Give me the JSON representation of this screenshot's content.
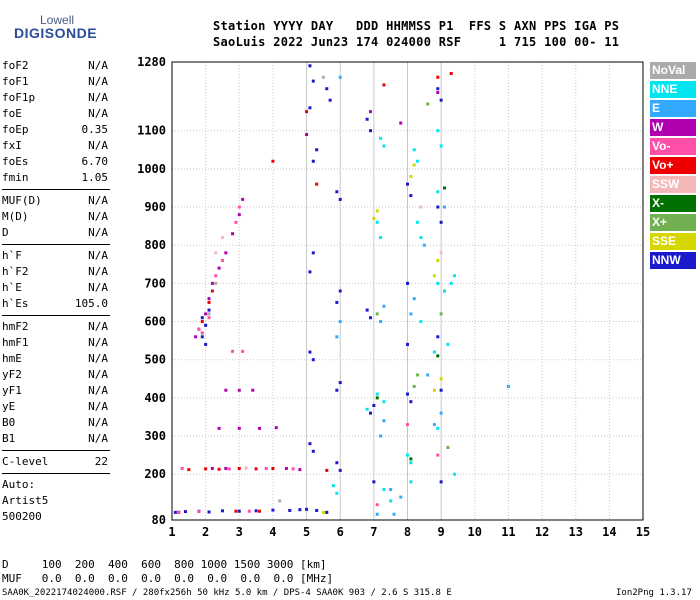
{
  "logo": {
    "top": "Lowell",
    "bottom": "DIGISONDE"
  },
  "header": {
    "line1": "Station YYYY DAY   DDD HHMMSS P1  FFS S AXN PPS IGA PS",
    "line2": "SaoLuis 2022 Jun23 174 024000 RSF     1 715 100 00- 11"
  },
  "sidebar": {
    "group1": [
      {
        "label": "foF2",
        "value": "N/A"
      },
      {
        "label": "foF1",
        "value": "N/A"
      },
      {
        "label": "foF1p",
        "value": "N/A"
      },
      {
        "label": "foE",
        "value": "N/A"
      },
      {
        "label": "foEp",
        "value": "0.35"
      },
      {
        "label": "fxI",
        "value": "N/A"
      },
      {
        "label": "foEs",
        "value": "6.70"
      },
      {
        "label": "fmin",
        "value": "1.05"
      }
    ],
    "group2": [
      {
        "label": "MUF(D)",
        "value": "N/A"
      },
      {
        "label": "M(D)",
        "value": "N/A"
      },
      {
        "label": "D",
        "value": "N/A"
      }
    ],
    "group3": [
      {
        "label": "h`F",
        "value": "N/A"
      },
      {
        "label": "h`F2",
        "value": "N/A"
      },
      {
        "label": "h`E",
        "value": "N/A"
      },
      {
        "label": "h`Es",
        "value": "105.0"
      }
    ],
    "group4": [
      {
        "label": "hmF2",
        "value": "N/A"
      },
      {
        "label": "hmF1",
        "value": "N/A"
      },
      {
        "label": "hmE",
        "value": "N/A"
      },
      {
        "label": "yF2",
        "value": "N/A"
      },
      {
        "label": "yF1",
        "value": "N/A"
      },
      {
        "label": "yE",
        "value": "N/A"
      },
      {
        "label": "B0",
        "value": "N/A"
      },
      {
        "label": "B1",
        "value": "N/A"
      }
    ],
    "clevel": {
      "label": "C-level",
      "value": "22"
    },
    "auto_lines": [
      "Auto:",
      "Artist5",
      "500200"
    ]
  },
  "legend": [
    {
      "label": "NoVal",
      "color": "#aaaaaa"
    },
    {
      "label": "NNE",
      "color": "#00e5ee"
    },
    {
      "label": "E",
      "color": "#33aaff"
    },
    {
      "label": "W",
      "color": "#b000b0"
    },
    {
      "label": "Vo-",
      "color": "#ff4fa8"
    },
    {
      "label": "Vo+",
      "color": "#ee0000"
    },
    {
      "label": "SSW",
      "color": "#f4b8b8"
    },
    {
      "label": "X-",
      "color": "#007000"
    },
    {
      "label": "X+",
      "color": "#70b050"
    },
    {
      "label": "SSE",
      "color": "#d6d600"
    },
    {
      "label": "NNW",
      "color": "#1a1acc"
    }
  ],
  "bottom": {
    "d_line": "D     100  200  400  600  800 1000 1500 3000 [km]",
    "muf_line": "MUF   0.0  0.0  0.0  0.0  0.0  0.0  0.0  0.0 [MHz]",
    "footer": "SAA0K_2022174024000.RSF / 280fx256h 50 kHz 5.0 km / DPS-4 SAA0K 903 / 2.6 S 315.8 E",
    "version": "Ion2Png 1.3.17"
  },
  "chart_data": {
    "type": "scatter",
    "title": "",
    "xlabel": "",
    "ylabel": "",
    "xlim": [
      1,
      15
    ],
    "ylim": [
      80,
      1280
    ],
    "xticks": [
      1,
      2,
      3,
      4,
      5,
      6,
      7,
      8,
      9,
      10,
      11,
      12,
      13,
      14,
      15
    ],
    "yticks": [
      80,
      200,
      300,
      400,
      500,
      600,
      700,
      800,
      900,
      1000,
      1100,
      1280
    ],
    "grid": true,
    "series": [
      {
        "name": "NNW",
        "color": "#1a1acc",
        "points": [
          [
            1.1,
            100
          ],
          [
            1.4,
            102
          ],
          [
            1.8,
            103
          ],
          [
            2.1,
            101
          ],
          [
            2.5,
            104
          ],
          [
            3.0,
            103
          ],
          [
            3.5,
            104
          ],
          [
            4.0,
            106
          ],
          [
            4.5,
            105
          ],
          [
            4.8,
            107
          ],
          [
            5.0,
            108
          ],
          [
            5.3,
            105
          ],
          [
            5.6,
            100
          ],
          [
            1.9,
            610
          ],
          [
            2.0,
            590
          ],
          [
            2.1,
            630
          ],
          [
            1.9,
            560
          ],
          [
            2.0,
            540
          ],
          [
            5.1,
            1270
          ],
          [
            5.2,
            1230
          ],
          [
            5.1,
            1160
          ],
          [
            5.2,
            1020
          ],
          [
            5.3,
            1050
          ],
          [
            5.9,
            940
          ],
          [
            6.0,
            920
          ],
          [
            5.9,
            650
          ],
          [
            6.0,
            680
          ],
          [
            5.2,
            780
          ],
          [
            5.1,
            730
          ],
          [
            5.2,
            500
          ],
          [
            5.1,
            520
          ],
          [
            5.9,
            420
          ],
          [
            6.0,
            440
          ],
          [
            5.2,
            260
          ],
          [
            5.1,
            280
          ],
          [
            5.9,
            230
          ],
          [
            6.0,
            210
          ],
          [
            5.6,
            1210
          ],
          [
            5.7,
            1180
          ],
          [
            6.8,
            1130
          ],
          [
            6.9,
            1100
          ],
          [
            6.8,
            630
          ],
          [
            6.9,
            610
          ],
          [
            7.0,
            380
          ],
          [
            6.9,
            360
          ],
          [
            7.0,
            180
          ],
          [
            8.0,
            960
          ],
          [
            8.1,
            930
          ],
          [
            8.0,
            700
          ],
          [
            8.0,
            540
          ],
          [
            8.0,
            410
          ],
          [
            8.1,
            390
          ],
          [
            8.9,
            1210
          ],
          [
            9.0,
            1180
          ],
          [
            8.9,
            900
          ],
          [
            9.0,
            860
          ],
          [
            8.9,
            560
          ],
          [
            9.0,
            420
          ],
          [
            9.0,
            180
          ]
        ]
      },
      {
        "name": "Vo+",
        "color": "#ee0000",
        "points": [
          [
            1.5,
            212
          ],
          [
            2.0,
            214
          ],
          [
            2.4,
            213
          ],
          [
            3.0,
            215
          ],
          [
            3.5,
            214
          ],
          [
            4.0,
            215
          ],
          [
            5.6,
            210
          ],
          [
            1.2,
            100
          ],
          [
            2.9,
            103
          ],
          [
            3.6,
            103
          ],
          [
            5.0,
            1150
          ],
          [
            8.9,
            1240
          ],
          [
            9.3,
            1250
          ],
          [
            7.3,
            1220
          ],
          [
            5.3,
            960
          ],
          [
            4.0,
            1020
          ],
          [
            1.9,
            600
          ],
          [
            2.1,
            650
          ],
          [
            2.2,
            680
          ]
        ]
      },
      {
        "name": "W",
        "color": "#b000b0",
        "points": [
          [
            1.7,
            560
          ],
          [
            1.8,
            580
          ],
          [
            2.0,
            620
          ],
          [
            2.1,
            660
          ],
          [
            2.2,
            700
          ],
          [
            2.4,
            740
          ],
          [
            2.6,
            780
          ],
          [
            2.8,
            830
          ],
          [
            3.0,
            880
          ],
          [
            3.1,
            920
          ],
          [
            2.4,
            320
          ],
          [
            3.0,
            320
          ],
          [
            3.6,
            320
          ],
          [
            4.1,
            322
          ],
          [
            2.6,
            420
          ],
          [
            3.0,
            420
          ],
          [
            3.4,
            420
          ],
          [
            2.2,
            215
          ],
          [
            2.6,
            215
          ],
          [
            3.2,
            216
          ],
          [
            4.4,
            215
          ],
          [
            4.8,
            212
          ],
          [
            5.0,
            1090
          ],
          [
            6.9,
            1150
          ],
          [
            7.8,
            1120
          ],
          [
            8.9,
            1200
          ]
        ]
      },
      {
        "name": "Vo-",
        "color": "#ff4fa8",
        "points": [
          [
            1.8,
            580
          ],
          [
            1.9,
            570
          ],
          [
            2.1,
            610
          ],
          [
            2.3,
            720
          ],
          [
            2.5,
            760
          ],
          [
            2.9,
            860
          ],
          [
            3.0,
            900
          ],
          [
            1.3,
            215
          ],
          [
            2.7,
            214
          ],
          [
            3.8,
            215
          ],
          [
            4.6,
            214
          ],
          [
            1.2,
            101
          ],
          [
            1.8,
            102
          ],
          [
            3.3,
            103
          ],
          [
            8.0,
            330
          ],
          [
            8.9,
            250
          ],
          [
            7.1,
            120
          ],
          [
            2.8,
            522
          ],
          [
            3.1,
            522
          ]
        ]
      },
      {
        "name": "NNE",
        "color": "#00e5ee",
        "points": [
          [
            5.8,
            170
          ],
          [
            5.9,
            150
          ],
          [
            7.2,
            1080
          ],
          [
            7.3,
            1060
          ],
          [
            7.1,
            860
          ],
          [
            7.2,
            820
          ],
          [
            8.3,
            860
          ],
          [
            8.4,
            820
          ],
          [
            8.9,
            700
          ],
          [
            9.1,
            680
          ],
          [
            8.2,
            1050
          ],
          [
            8.3,
            1020
          ],
          [
            8.9,
            940
          ],
          [
            9.3,
            700
          ],
          [
            9.4,
            720
          ],
          [
            8.0,
            250
          ],
          [
            8.1,
            230
          ],
          [
            8.9,
            1100
          ],
          [
            9.0,
            1060
          ],
          [
            7.1,
            410
          ],
          [
            7.3,
            390
          ],
          [
            8.8,
            520
          ],
          [
            9.2,
            540
          ],
          [
            8.4,
            600
          ],
          [
            6.8,
            370
          ],
          [
            7.5,
            130
          ],
          [
            8.9,
            320
          ],
          [
            7.3,
            160
          ],
          [
            9.4,
            200
          ],
          [
            8.1,
            180
          ]
        ]
      },
      {
        "name": "E",
        "color": "#33aaff",
        "points": [
          [
            5.9,
            560
          ],
          [
            6.0,
            600
          ],
          [
            7.2,
            600
          ],
          [
            7.3,
            640
          ],
          [
            7.2,
            300
          ],
          [
            7.3,
            340
          ],
          [
            8.1,
            620
          ],
          [
            8.2,
            660
          ],
          [
            8.8,
            330
          ],
          [
            9.0,
            360
          ],
          [
            7.5,
            160
          ],
          [
            7.8,
            140
          ],
          [
            8.5,
            800
          ],
          [
            9.1,
            900
          ],
          [
            11.0,
            430
          ],
          [
            6.0,
            1240
          ],
          [
            7.1,
            95
          ],
          [
            7.6,
            95
          ],
          [
            8.6,
            460
          ]
        ]
      },
      {
        "name": "SSE",
        "color": "#d6d600",
        "points": [
          [
            8.8,
            720
          ],
          [
            8.9,
            760
          ],
          [
            8.8,
            420
          ],
          [
            9.0,
            450
          ],
          [
            8.1,
            980
          ],
          [
            8.2,
            1010
          ],
          [
            7.0,
            870
          ],
          [
            7.1,
            890
          ],
          [
            5.5,
            100
          ]
        ]
      },
      {
        "name": "X+",
        "color": "#70b050",
        "points": [
          [
            8.2,
            430
          ],
          [
            8.3,
            460
          ],
          [
            9.0,
            620
          ],
          [
            8.6,
            1170
          ],
          [
            7.1,
            620
          ],
          [
            9.2,
            270
          ]
        ]
      },
      {
        "name": "X-",
        "color": "#007000",
        "points": [
          [
            8.1,
            240
          ],
          [
            8.9,
            510
          ],
          [
            7.1,
            400
          ],
          [
            9.1,
            950
          ]
        ]
      },
      {
        "name": "SSW",
        "color": "#f4b8b8",
        "points": [
          [
            2.3,
            780
          ],
          [
            2.5,
            820
          ],
          [
            8.4,
            900
          ],
          [
            9.0,
            780
          ],
          [
            3.2,
            216
          ]
        ]
      },
      {
        "name": "NoVal",
        "color": "#aaaaaa",
        "points": [
          [
            2.1,
            620
          ],
          [
            2.3,
            700
          ],
          [
            5.5,
            1240
          ],
          [
            4.2,
            130
          ]
        ]
      }
    ]
  }
}
